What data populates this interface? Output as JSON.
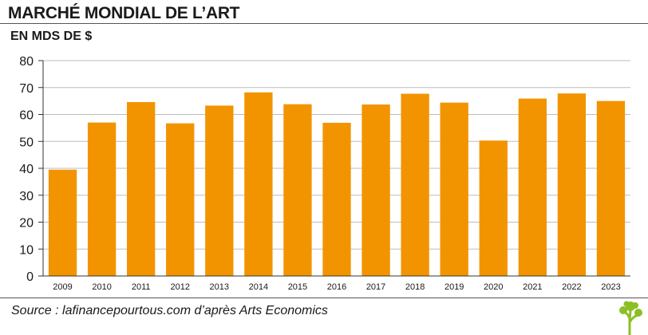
{
  "title": "MARCHÉ MONDIAL DE L’ART",
  "subtitle": "EN MDS DE $",
  "source": "Source : lafinancepourtous.com d’après Arts Economics",
  "colors": {
    "bar": "#f29400",
    "grid": "#bdbdbd",
    "text": "#1a1a1a"
  },
  "logo_icon": "tree-icon",
  "chart_data": {
    "type": "bar",
    "categories": [
      "2009",
      "2010",
      "2011",
      "2012",
      "2013",
      "2014",
      "2015",
      "2016",
      "2017",
      "2018",
      "2019",
      "2020",
      "2021",
      "2022",
      "2023"
    ],
    "values": [
      39.5,
      57.0,
      64.6,
      56.7,
      63.3,
      68.2,
      63.8,
      56.9,
      63.7,
      67.7,
      64.4,
      50.3,
      65.9,
      67.8,
      65.0
    ],
    "title": "MARCHÉ MONDIAL DE L’ART",
    "ylabel": "EN MDS DE $",
    "xlabel": "",
    "ylim": [
      0,
      80
    ],
    "yticks": [
      0,
      10,
      20,
      30,
      40,
      50,
      60,
      70,
      80
    ],
    "grid": true,
    "legend": "none"
  }
}
